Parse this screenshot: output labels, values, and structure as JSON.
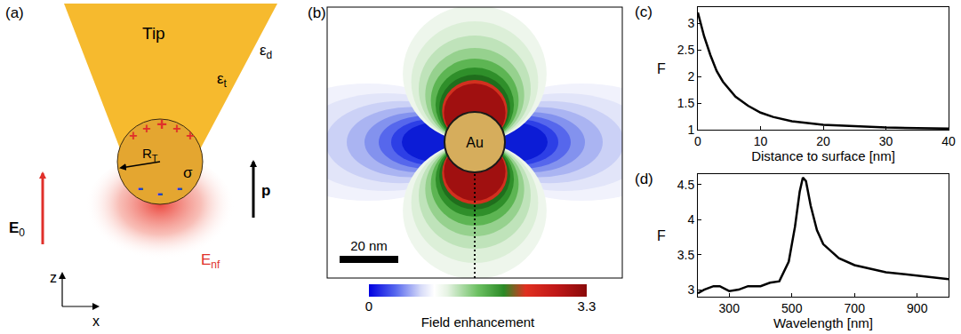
{
  "panel_labels": [
    "(a)",
    "(b)",
    "(c)",
    "(d)"
  ],
  "diagram": {
    "tip": "Tip",
    "eps_t": {
      "text": "ε",
      "sub": "t"
    },
    "eps_d": {
      "text": "ε",
      "sub": "d"
    },
    "radius": {
      "text": "R",
      "sub": "T"
    },
    "sigma": "σ",
    "e0": {
      "text": "E",
      "sub": "0"
    },
    "p": "p",
    "enf": {
      "text": "E",
      "sub": "nf"
    },
    "positive": "+",
    "negative": "-",
    "axes": [
      "z",
      "x"
    ]
  },
  "field_map": {
    "particle": "Au",
    "scale_bar": "20 nm",
    "colorbar": {
      "range": [
        0,
        3.3
      ],
      "ticks": [
        0,
        3.3
      ],
      "label": "Field enhancement"
    }
  },
  "chart_data": [
    {
      "type": "line",
      "x": [
        0,
        1,
        2,
        3,
        4,
        5,
        6,
        8,
        10,
        12,
        15,
        20,
        25,
        30,
        35,
        40
      ],
      "values": [
        3.2,
        2.75,
        2.4,
        2.1,
        1.9,
        1.75,
        1.62,
        1.45,
        1.32,
        1.24,
        1.16,
        1.09,
        1.06,
        1.04,
        1.03,
        1.02
      ],
      "x_label": "Distance to surface [nm]",
      "y_label": "F",
      "xlim": [
        0,
        40
      ],
      "xticks": [
        0,
        10,
        20,
        30,
        40
      ],
      "ylim": [
        1,
        3.3
      ],
      "yticks": [
        1,
        1.5,
        2,
        2.5,
        3
      ],
      "color": "#000000",
      "grid": false
    },
    {
      "type": "line",
      "x": [
        200,
        220,
        250,
        270,
        300,
        330,
        360,
        400,
        430,
        460,
        490,
        510,
        525,
        535,
        545,
        560,
        580,
        600,
        650,
        700,
        800,
        900,
        1000
      ],
      "values": [
        2.95,
        3.0,
        3.05,
        3.05,
        2.98,
        3.0,
        3.05,
        3.05,
        3.1,
        3.12,
        3.4,
        3.9,
        4.4,
        4.6,
        4.55,
        4.2,
        3.85,
        3.65,
        3.45,
        3.35,
        3.25,
        3.2,
        3.15
      ],
      "x_label": "Wavelength [nm]",
      "y_label": "F",
      "xlim": [
        200,
        1000
      ],
      "xticks": [
        300,
        500,
        700,
        900
      ],
      "ylim": [
        2.9,
        4.65
      ],
      "yticks": [
        3,
        3.5,
        4,
        4.5
      ],
      "color": "#000000",
      "grid": false
    }
  ]
}
